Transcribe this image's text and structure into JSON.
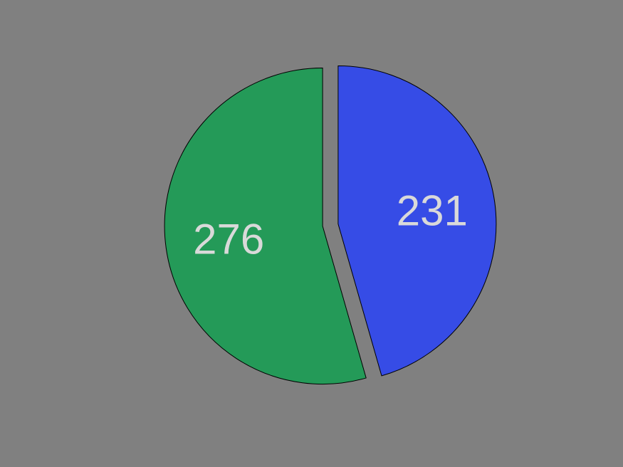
{
  "chart_data": {
    "type": "pie",
    "slices": [
      {
        "label": "276",
        "value": 276,
        "color": "#249a58"
      },
      {
        "label": "231",
        "value": 231,
        "color": "#364ce6"
      }
    ],
    "background_color": "#808080",
    "label_color": "#d9d9d9",
    "edge_color": "#000000"
  }
}
